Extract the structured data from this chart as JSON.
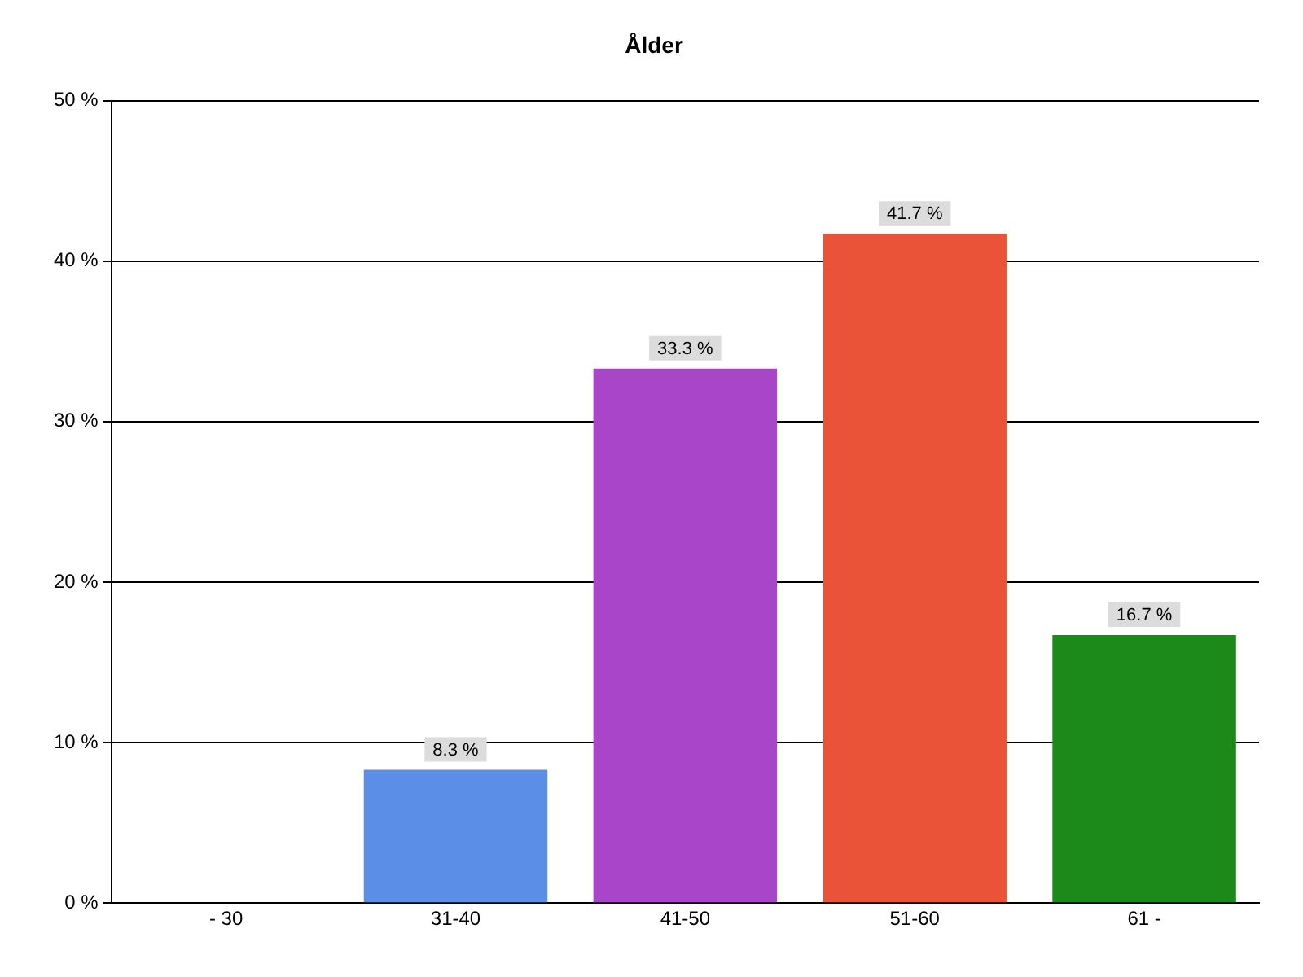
{
  "chart_data": {
    "type": "bar",
    "title": "Ålder",
    "categories": [
      "- 30",
      "31-40",
      "41-50",
      "51-60",
      "61 -"
    ],
    "values": [
      0,
      8.3,
      33.3,
      41.7,
      16.7
    ],
    "value_labels": [
      null,
      "8.3 %",
      "33.3 %",
      "41.7 %",
      "16.7 %"
    ],
    "colors": [
      "#5b8ee6",
      "#5b8ee6",
      "#a845c8",
      "#ea5338",
      "#1b8a1b"
    ],
    "ylim": [
      0,
      50
    ],
    "yticks": [
      {
        "value": 0,
        "label": "0 %"
      },
      {
        "value": 10,
        "label": "10 %"
      },
      {
        "value": 20,
        "label": "20 %"
      },
      {
        "value": 30,
        "label": "30 %"
      },
      {
        "value": 40,
        "label": "40 %"
      },
      {
        "value": 50,
        "label": "50 %"
      }
    ],
    "grid": "y",
    "legend": false
  }
}
